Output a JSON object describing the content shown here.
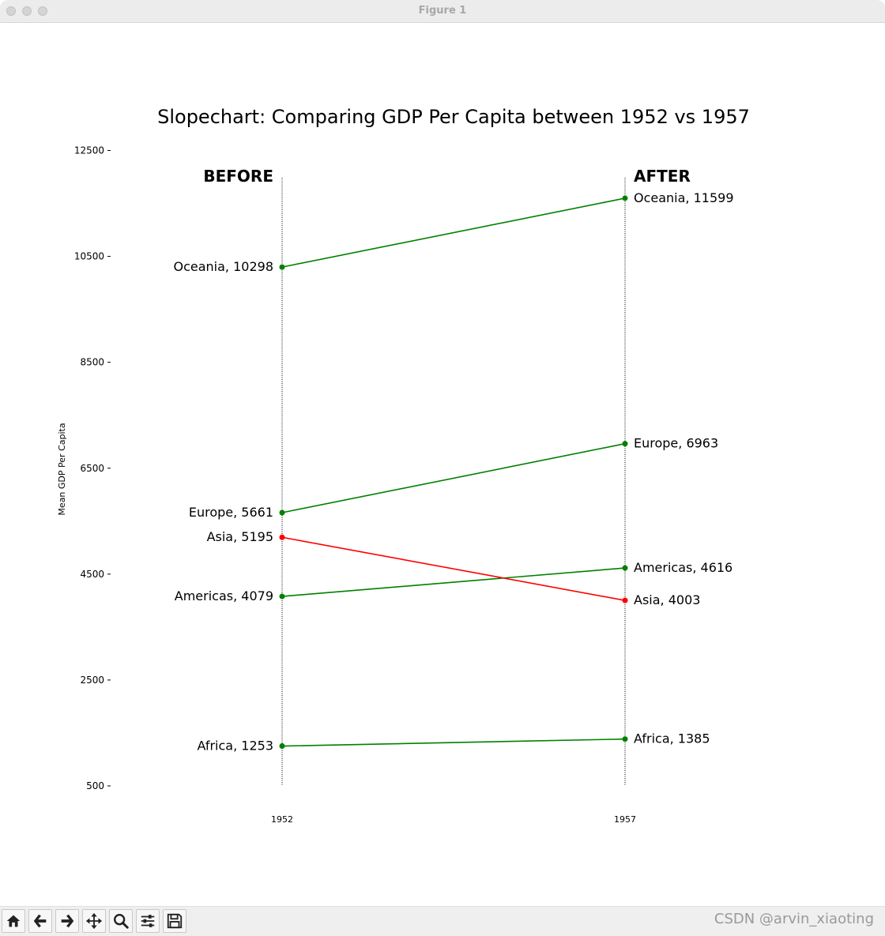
{
  "window": {
    "title": "Figure 1"
  },
  "toolbar": {
    "buttons": [
      {
        "name": "home-icon"
      },
      {
        "name": "back-arrow-icon"
      },
      {
        "name": "forward-arrow-icon"
      },
      {
        "name": "pan-icon"
      },
      {
        "name": "zoom-icon"
      },
      {
        "name": "configure-subplots-icon"
      },
      {
        "name": "save-icon"
      }
    ]
  },
  "watermark": "CSDN @arvin_xiaoting",
  "chart_data": {
    "type": "line",
    "title": "Slopechart: Comparing GDP Per Capita between 1952 vs 1957",
    "ylabel": "Mean GDP Per Capita",
    "xlabel": "",
    "x": [
      1952,
      1957
    ],
    "xtick_labels": [
      "1952",
      "1957"
    ],
    "ylim": [
      500,
      13000
    ],
    "yticks": [
      500,
      2500,
      4500,
      6500,
      8500,
      10500,
      12500
    ],
    "ytick_labels": [
      "500",
      "2500",
      "4500",
      "6500",
      "8500",
      "10500",
      "12500"
    ],
    "column_labels": {
      "before": "BEFORE",
      "after": "AFTER"
    },
    "grid": false,
    "series": [
      {
        "name": "Africa",
        "values": [
          1253,
          1385
        ],
        "color": "#008000",
        "label_before": "Africa, 1253",
        "label_after": "Africa, 1385"
      },
      {
        "name": "Americas",
        "values": [
          4079,
          4616
        ],
        "color": "#008000",
        "label_before": "Americas, 4079",
        "label_after": "Americas, 4616"
      },
      {
        "name": "Asia",
        "values": [
          5195,
          4003
        ],
        "color": "#ff0000",
        "label_before": "Asia, 5195",
        "label_after": "Asia, 4003"
      },
      {
        "name": "Europe",
        "values": [
          5661,
          6963
        ],
        "color": "#008000",
        "label_before": "Europe, 5661",
        "label_after": "Europe, 6963"
      },
      {
        "name": "Oceania",
        "values": [
          10298,
          11599
        ],
        "color": "#008000",
        "label_before": "Oceania, 10298",
        "label_after": "Oceania, 11599"
      }
    ]
  }
}
